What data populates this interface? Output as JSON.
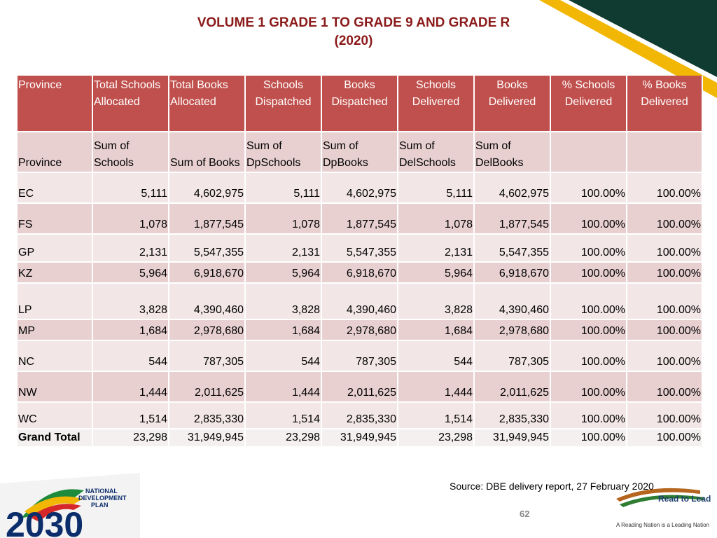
{
  "title": {
    "line1": "VOLUME 1 GRADE 1 TO GRADE 9 AND GRADE R",
    "line2": "(2020)"
  },
  "table": {
    "header": [
      "Province",
      "Total Schools Allocated",
      "Total Books Allocated",
      "Schools Dispatched",
      "Books Dispatched",
      "Schools Delivered",
      "Books Delivered",
      "% Schools Delivered",
      "% Books Delivered"
    ],
    "subheader": [
      "Province",
      "Sum of Schools",
      "Sum of Books",
      "Sum of DpSchools",
      "Sum of DpBooks",
      "Sum of DelSchools",
      "Sum of DelBooks"
    ],
    "rows": [
      [
        "EC",
        "5,111",
        "4,602,975",
        "5,111",
        "4,602,975",
        "5,111",
        "4,602,975",
        "100.00%",
        "100.00%"
      ],
      [
        "FS",
        "1,078",
        "1,877,545",
        "1,078",
        "1,877,545",
        "1,078",
        "1,877,545",
        "100.00%",
        "100.00%"
      ],
      [
        "GP",
        "2,131",
        "5,547,355",
        "2,131",
        "5,547,355",
        "2,131",
        "5,547,355",
        "100.00%",
        "100.00%"
      ],
      [
        "KZ",
        "5,964",
        "6,918,670",
        "5,964",
        "6,918,670",
        "5,964",
        "6,918,670",
        "100.00%",
        "100.00%"
      ],
      [
        "LP",
        "3,828",
        "4,390,460",
        "3,828",
        "4,390,460",
        "3,828",
        "4,390,460",
        "100.00%",
        "100.00%"
      ],
      [
        "MP",
        "1,684",
        "2,978,680",
        "1,684",
        "2,978,680",
        "1,684",
        "2,978,680",
        "100.00%",
        "100.00%"
      ],
      [
        "NC",
        "544",
        "787,305",
        "544",
        "787,305",
        "544",
        "787,305",
        "100.00%",
        "100.00%"
      ],
      [
        "NW",
        "1,444",
        "2,011,625",
        "1,444",
        "2,011,625",
        "1,444",
        "2,011,625",
        "100.00%",
        "100.00%"
      ],
      [
        "WC",
        "1,514",
        "2,835,330",
        "1,514",
        "2,835,330",
        "1,514",
        "2,835,330",
        "100.00%",
        "100.00%"
      ],
      [
        "Grand Total",
        "23,298",
        "31,949,945",
        "23,298",
        "31,949,945",
        "23,298",
        "31,949,945",
        "100.00%",
        "100.00%"
      ]
    ]
  },
  "source": "Source: DBE delivery report, 27 February 2020",
  "page_number": "62",
  "logo_left": {
    "line1": "NATIONAL",
    "line2": "DEVELOPMENT",
    "line3": "PLAN",
    "year": "2030"
  },
  "logo_right": {
    "title": "Read to Lead",
    "tagline": "A Reading Nation is a Leading Nation"
  }
}
